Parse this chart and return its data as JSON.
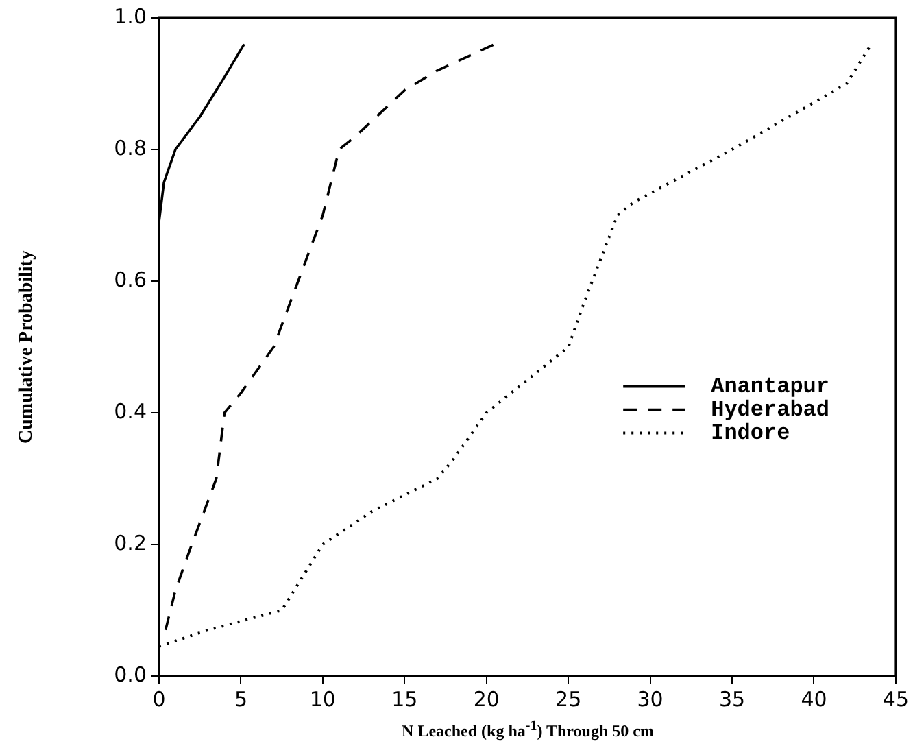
{
  "chart_data": {
    "type": "line",
    "xlabel": "N Leached (kg ha$^{-1}$) Through 50 cm",
    "ylabel": "Cumulative Probability",
    "xlim": [
      0,
      45
    ],
    "xticks": [
      0,
      5,
      10,
      15,
      20,
      25,
      30,
      35,
      40,
      45
    ],
    "ylim": [
      0,
      1
    ],
    "yticks": [
      {
        "value": 0,
        "label": "0.0"
      },
      0.2,
      0.4,
      0.6,
      0.8,
      {
        "value": 1,
        "label": "1.0"
      }
    ],
    "grid": false,
    "legend": "right",
    "marker": "none",
    "series": [
      {
        "name": "Anantapur",
        "color": "#000000",
        "line_style": "solid",
        "x": [
          0,
          0.3,
          1,
          2.5,
          4,
          5.2
        ],
        "values": [
          0.69,
          0.75,
          0.8,
          0.85,
          0.91,
          0.96
        ]
      },
      {
        "name": "Hyderabad",
        "color": "#000000",
        "line_style": "dashed",
        "x": [
          0.4,
          1,
          2,
          3.5,
          4,
          5,
          7,
          8.5,
          10,
          11,
          12,
          15,
          17,
          20.5
        ],
        "values": [
          0.07,
          0.13,
          0.2,
          0.3,
          0.4,
          0.43,
          0.5,
          0.6,
          0.7,
          0.8,
          0.82,
          0.89,
          0.92,
          0.96
        ]
      },
      {
        "name": "Indore",
        "color": "#000000",
        "line_style": "dotted",
        "x": [
          0,
          3,
          6,
          7.5,
          10,
          13,
          17,
          18,
          20,
          25,
          26,
          28,
          29,
          35,
          42,
          43.5
        ],
        "values": [
          0.045,
          0.07,
          0.09,
          0.1,
          0.2,
          0.25,
          0.3,
          0.33,
          0.4,
          0.5,
          0.57,
          0.7,
          0.72,
          0.8,
          0.9,
          0.96
        ]
      }
    ]
  }
}
